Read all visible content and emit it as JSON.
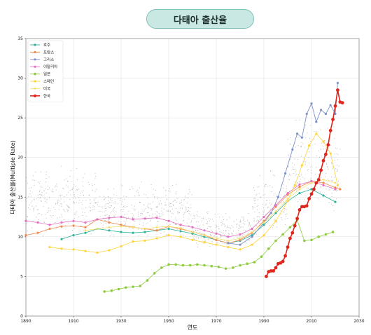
{
  "page_title": "다태아 출산율",
  "chart_data": {
    "type": "line",
    "xlabel": "연도",
    "ylabel": "다태아 출산율(Multiple Rate)",
    "xlim": [
      1890,
      2030
    ],
    "ylim": [
      0,
      35
    ],
    "xticks": [
      1890,
      1910,
      1930,
      1950,
      1970,
      1990,
      2010,
      2030
    ],
    "yticks": [
      0,
      5,
      10,
      15,
      20,
      25,
      30,
      35
    ],
    "grid": true,
    "legend_position": "top-left",
    "background_scatter": {
      "description_visible": "grey dots: other countries",
      "color": "#9a9a9a",
      "bands": [
        {
          "x": [
            1890,
            1920
          ],
          "y": [
            9,
            20
          ]
        },
        {
          "x": [
            1920,
            1960
          ],
          "y": [
            9,
            17.5
          ]
        },
        {
          "x": [
            1960,
            1985
          ],
          "y": [
            7.5,
            14
          ]
        },
        {
          "x": [
            1985,
            2000
          ],
          "y": [
            9,
            19
          ]
        },
        {
          "x": [
            2000,
            2022
          ],
          "y": [
            11,
            27
          ]
        }
      ]
    },
    "series": [
      {
        "name": "호주",
        "color": "#2cb39a",
        "marker_size": 1.6,
        "line_width": 0.8,
        "x": [
          1905,
          1910,
          1915,
          1920,
          1925,
          1930,
          1935,
          1940,
          1945,
          1950,
          1955,
          1960,
          1965,
          1970,
          1975,
          1980,
          1985,
          1990,
          1995,
          2000,
          2005,
          2010,
          2015,
          2020
        ],
        "y": [
          9.7,
          10.2,
          10.5,
          11,
          10.8,
          10.6,
          10.5,
          10.6,
          10.8,
          11,
          10.7,
          10.4,
          10,
          9.6,
          9.2,
          9.5,
          10.2,
          11.5,
          13,
          14.5,
          15.5,
          16,
          15.2,
          14.4
        ]
      },
      {
        "name": "프랑스",
        "color": "#f2874e",
        "marker_size": 1.6,
        "line_width": 0.8,
        "x": [
          1890,
          1895,
          1900,
          1905,
          1910,
          1915,
          1920,
          1925,
          1930,
          1935,
          1940,
          1945,
          1950,
          1955,
          1960,
          1965,
          1970,
          1975,
          1980,
          1985,
          1990,
          1995,
          2000,
          2005,
          2010,
          2015,
          2020,
          2022
        ],
        "y": [
          10.2,
          10.5,
          11,
          11.3,
          11.4,
          11.2,
          12.2,
          11.8,
          11.5,
          11.2,
          11,
          10.8,
          11.3,
          11,
          10.6,
          10.2,
          9.6,
          9.2,
          9.6,
          10.5,
          12,
          13.8,
          15.3,
          16.3,
          17,
          16.8,
          16.2,
          16
        ]
      },
      {
        "name": "그리스",
        "color": "#7f93c8",
        "marker_size": 1.6,
        "line_width": 0.9,
        "x": [
          1975,
          1980,
          1985,
          1990,
          1993,
          1996,
          1999,
          2002,
          2004,
          2006,
          2008,
          2010,
          2012,
          2014,
          2016,
          2018,
          2020,
          2021
        ],
        "y": [
          9.2,
          9,
          10,
          11.8,
          13,
          15,
          18,
          21,
          23,
          22.5,
          25.5,
          26.8,
          24.5,
          26,
          25.5,
          26.6,
          25.5,
          29.4
        ]
      },
      {
        "name": "이탈리아",
        "color": "#e56fc0",
        "marker_size": 1.6,
        "line_width": 0.8,
        "x": [
          1890,
          1895,
          1900,
          1905,
          1910,
          1915,
          1920,
          1925,
          1930,
          1935,
          1940,
          1945,
          1950,
          1955,
          1960,
          1965,
          1970,
          1975,
          1980,
          1985,
          1990,
          1995,
          2000,
          2005,
          2010,
          2015,
          2020
        ],
        "y": [
          12,
          11.8,
          11.5,
          11.8,
          12,
          11.8,
          12.2,
          12.4,
          12.5,
          12.2,
          12.3,
          12.4,
          12,
          11.5,
          11.2,
          10.8,
          10.4,
          10,
          10.3,
          11,
          12.5,
          14,
          15.5,
          16.6,
          17,
          16.5,
          16
        ]
      },
      {
        "name": "일본",
        "color": "#8fcc40",
        "marker_size": 1.8,
        "line_width": 0.8,
        "x": [
          1923,
          1926,
          1929,
          1932,
          1935,
          1938,
          1941,
          1944,
          1947,
          1950,
          1953,
          1956,
          1959,
          1962,
          1965,
          1968,
          1971,
          1974,
          1977,
          1980,
          1983,
          1986,
          1989,
          1992,
          1995,
          1998,
          2001,
          2004,
          2007,
          2010,
          2013,
          2016,
          2019
        ],
        "y": [
          3.1,
          3.2,
          3.4,
          3.6,
          3.7,
          3.8,
          4.5,
          5.4,
          6.1,
          6.5,
          6.5,
          6.4,
          6.4,
          6.5,
          6.4,
          6.3,
          6.2,
          6,
          6.1,
          6.4,
          6.6,
          6.8,
          7.5,
          8.5,
          9.5,
          10.3,
          11.2,
          12.1,
          9.5,
          9.6,
          10,
          10.3,
          10.6
        ]
      },
      {
        "name": "스페인",
        "color": "#ffd43b",
        "marker_size": 1.6,
        "line_width": 0.8,
        "x": [
          1900,
          1905,
          1910,
          1915,
          1920,
          1925,
          1930,
          1935,
          1940,
          1945,
          1950,
          1955,
          1960,
          1965,
          1970,
          1975,
          1980,
          1985,
          1990,
          1995,
          2000,
          2003,
          2006,
          2009,
          2012,
          2015,
          2018,
          2021
        ],
        "y": [
          8.7,
          8.5,
          8.4,
          8.2,
          8,
          8.3,
          8.8,
          9.4,
          9.5,
          9.8,
          10.2,
          10,
          9.6,
          9.3,
          9,
          8.7,
          8.4,
          9,
          10.2,
          12,
          14.5,
          16.5,
          19,
          21.5,
          23,
          22,
          20.5,
          16.5
        ]
      },
      {
        "name": "미국",
        "color": "#f5e06a",
        "marker_size": 1.4,
        "line_width": 0.7,
        "x": [
          1915,
          1920,
          1925,
          1930,
          1935,
          1940,
          1945,
          1950,
          1955,
          1960,
          1965,
          1970,
          1975,
          1980,
          1985,
          1990,
          1995,
          2000,
          2005,
          2010,
          2015,
          2020
        ],
        "y": [
          10.8,
          11,
          11.2,
          11.3,
          11.2,
          11,
          11.2,
          11.3,
          11.1,
          10.6,
          10.2,
          9.8,
          9.5,
          9.8,
          10.6,
          11.8,
          13.2,
          14.8,
          16,
          16.8,
          17.2,
          16.8
        ]
      },
      {
        "name": "한국",
        "color": "#e0261c",
        "marker_size": 2.4,
        "line_width": 1.6,
        "x": [
          1991,
          1992,
          1993,
          1994,
          1995,
          1996,
          1997,
          1998,
          1999,
          2000,
          2001,
          2002,
          2003,
          2004,
          2005,
          2006,
          2007,
          2008,
          2009,
          2010,
          2011,
          2012,
          2013,
          2014,
          2015,
          2016,
          2017,
          2018,
          2019,
          2020,
          2021,
          2022,
          2023
        ],
        "y": [
          5,
          5.6,
          5.7,
          5.7,
          6.1,
          6.6,
          6.7,
          6.9,
          7.6,
          8.7,
          9.8,
          10.5,
          11.4,
          12.3,
          13.4,
          13.8,
          13.8,
          13.9,
          14.8,
          15.4,
          16,
          16.8,
          17.2,
          18.4,
          19.6,
          20.4,
          21.6,
          23.4,
          24.8,
          26.5,
          28.5,
          27.0,
          26.9
        ]
      }
    ]
  }
}
